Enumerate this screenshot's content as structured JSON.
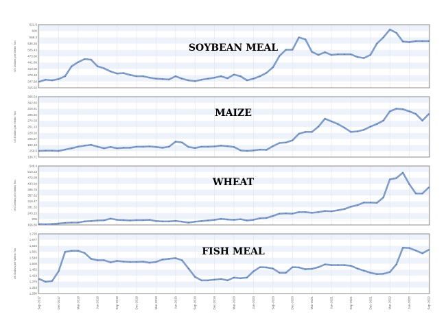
{
  "chart_data": [
    {
      "type": "line",
      "title": "SOYBEAN MEAL",
      "ylabel": "US Dollars per Metric Ton",
      "ylim": [
        315.92,
        621.5
      ],
      "yticks": [
        "621.5",
        "600",
        "568.3",
        "536.26",
        "505.43",
        "473.60",
        "441.86",
        "410.00",
        "378.48",
        "347.58",
        "315.92"
      ],
      "values": [
        345,
        355,
        352,
        358,
        372,
        420,
        440,
        455,
        452,
        420,
        410,
        395,
        385,
        387,
        378,
        372,
        372,
        365,
        360,
        358,
        356,
        372,
        360,
        352,
        348,
        355,
        360,
        365,
        372,
        362,
        380,
        372,
        352,
        360,
        372,
        388,
        415,
        470,
        500,
        500,
        560,
        550,
        490,
        475,
        488,
        475,
        478,
        478,
        478,
        465,
        460,
        475,
        530,
        560,
        598,
        582,
        540,
        537,
        542,
        542,
        542
      ]
    },
    {
      "type": "line",
      "title": "MAIZE",
      "ylabel": "US Dollars per Metric Ton",
      "ylim": [
        136.71,
        365.54
      ],
      "yticks": [
        "365.54",
        "342.65",
        "319.81",
        "296.92",
        "274.03",
        "251.13",
        "228.26",
        "205.37",
        "182.49",
        "159.6",
        "136.71"
      ],
      "values": [
        160,
        161,
        161,
        160,
        165,
        170,
        176,
        180,
        183,
        176,
        170,
        175,
        170,
        172,
        172,
        176,
        176,
        177,
        175,
        172,
        176,
        195,
        192,
        175,
        171,
        176,
        176,
        177,
        180,
        178,
        175,
        162,
        160,
        162,
        165,
        164,
        178,
        190,
        192,
        200,
        225,
        232,
        232,
        252,
        282,
        272,
        262,
        248,
        232,
        234,
        240,
        252,
        262,
        275,
        310,
        320,
        318,
        310,
        300,
        275,
        300
      ]
    },
    {
      "type": "line",
      "title": "WHEAT",
      "ylabel": "US Dollars per Metric Ton",
      "ylim": [
        166.86,
        548.4
      ],
      "yticks": [
        "548.4",
        "510.23",
        "472.08",
        "433.94",
        "395.78",
        "357.62",
        "319.47",
        "281.32",
        "243.15",
        "205",
        "166.86"
      ],
      "values": [
        172,
        171,
        173,
        176,
        180,
        182,
        182,
        190,
        192,
        196,
        197,
        208,
        200,
        198,
        196,
        198,
        198,
        200,
        192,
        190,
        190,
        193,
        188,
        182,
        188,
        192,
        196,
        200,
        206,
        202,
        200,
        204,
        196,
        200,
        210,
        212,
        225,
        240,
        242,
        240,
        250,
        250,
        245,
        250,
        257,
        255,
        262,
        270,
        285,
        295,
        312,
        312,
        310,
        345,
        462,
        470,
        505,
        430,
        370,
        370,
        410
      ]
    },
    {
      "type": "line",
      "title": "FISH MEAL",
      "ylabel": "US Dollars per Metric Ton",
      "ylim": [
        1290,
        1720
      ],
      "yticks": [
        "1,720",
        "1,677",
        "1,634",
        "1,591",
        "1,548",
        "1,505",
        "1,462",
        "1,419",
        "1,376",
        "1,333",
        "1,290"
      ],
      "values": [
        1395,
        1375,
        1380,
        1450,
        1590,
        1598,
        1598,
        1582,
        1540,
        1530,
        1530,
        1515,
        1525,
        1520,
        1518,
        1518,
        1520,
        1512,
        1518,
        1535,
        1540,
        1545,
        1530,
        1470,
        1410,
        1385,
        1385,
        1390,
        1395,
        1385,
        1405,
        1400,
        1405,
        1450,
        1480,
        1478,
        1470,
        1440,
        1440,
        1480,
        1478,
        1465,
        1468,
        1480,
        1500,
        1495,
        1495,
        1495,
        1490,
        1470,
        1455,
        1440,
        1430,
        1432,
        1445,
        1500,
        1620,
        1618,
        1600,
        1580,
        1605
      ]
    }
  ],
  "xticks": [
    "Sep-2017",
    "Dec-2017",
    "Mar-2018",
    "Jun-2018",
    "Sep-2018",
    "Dec-2018",
    "Mar-2019",
    "Jun-2019",
    "Sep-2019",
    "Dec-2019",
    "Mar-2020",
    "Jun-2020",
    "Sep-2020",
    "Dec-2020",
    "Mar-2021",
    "Jun-2021",
    "Sep-2021",
    "Dec-2021",
    "Mar-2022",
    "Jun-2022",
    "Sep-2022"
  ],
  "colors": {
    "line": "#7f9cc8",
    "band": "#eef2fa",
    "grid": "#dde4f0",
    "frame": "#888888"
  }
}
